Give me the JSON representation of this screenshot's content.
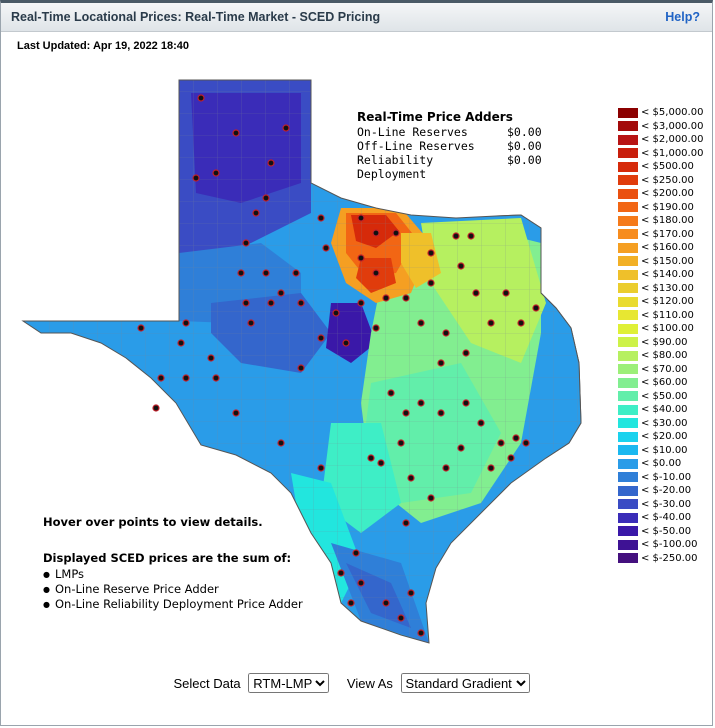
{
  "header": {
    "title": "Real-Time Locational Prices: Real-Time Market - SCED Pricing",
    "help_label": "Help?"
  },
  "last_updated": "Last Updated: Apr 19, 2022 18:40",
  "adders": {
    "heading": "Real-Time Price Adders",
    "rows": [
      {
        "label": "On-Line Reserves",
        "value": "$0.00"
      },
      {
        "label": "Off-Line Reserves",
        "value": "$0.00"
      },
      {
        "label": "Reliability Deployment",
        "value": "$0.00"
      }
    ]
  },
  "legend": [
    {
      "label": "< $5,000.00",
      "color": "#8b0000"
    },
    {
      "label": "< $3,000.00",
      "color": "#a30a0a"
    },
    {
      "label": "< $2,000.00",
      "color": "#b81414"
    },
    {
      "label": "< $1,000.00",
      "color": "#c81e0c"
    },
    {
      "label": "< $500.00",
      "color": "#d62a0a"
    },
    {
      "label": "< $250.00",
      "color": "#e03c0c"
    },
    {
      "label": "< $200.00",
      "color": "#ea5010"
    },
    {
      "label": "< $190.00",
      "color": "#f26614"
    },
    {
      "label": "< $180.00",
      "color": "#f57a1a"
    },
    {
      "label": "< $170.00",
      "color": "#f78c1e"
    },
    {
      "label": "< $160.00",
      "color": "#f59f22"
    },
    {
      "label": "< $150.00",
      "color": "#f2b026"
    },
    {
      "label": "< $140.00",
      "color": "#efc02a"
    },
    {
      "label": "< $130.00",
      "color": "#ebcd2e"
    },
    {
      "label": "< $120.00",
      "color": "#e9db30"
    },
    {
      "label": "< $110.00",
      "color": "#e7e732"
    },
    {
      "label": "< $100.00",
      "color": "#dff036"
    },
    {
      "label": "< $90.00",
      "color": "#cdf248"
    },
    {
      "label": "< $80.00",
      "color": "#b6f060"
    },
    {
      "label": "< $70.00",
      "color": "#9cef78"
    },
    {
      "label": "< $60.00",
      "color": "#82ee90"
    },
    {
      "label": "< $50.00",
      "color": "#62eeaa"
    },
    {
      "label": "< $40.00",
      "color": "#3eeec6"
    },
    {
      "label": "< $30.00",
      "color": "#22e6de"
    },
    {
      "label": "< $20.00",
      "color": "#1ad2ee"
    },
    {
      "label": "< $10.00",
      "color": "#1ab8f0"
    },
    {
      "label": "< $0.00",
      "color": "#2a9ce8"
    },
    {
      "label": "< $-10.00",
      "color": "#2f7fd8"
    },
    {
      "label": "< $-20.00",
      "color": "#3466cc"
    },
    {
      "label": "< $-30.00",
      "color": "#3a4cc4"
    },
    {
      "label": "< $-40.00",
      "color": "#3a2cb8"
    },
    {
      "label": "< $-50.00",
      "color": "#3a18a8"
    },
    {
      "label": "< $-100.00",
      "color": "#3e1294"
    },
    {
      "label": "< $-250.00",
      "color": "#44107e"
    }
  ],
  "notes": {
    "hover": "Hover over points to view details.",
    "displayed": "Displayed SCED prices are the sum of:",
    "items": [
      "LMPs",
      "On-Line Reserve Price Adder",
      "On-Line Reliability Deployment Price Adder"
    ]
  },
  "controls": {
    "select_data_label": "Select Data",
    "select_data_value": "RTM-LMP",
    "view_as_label": "View As",
    "view_as_value": "Standard Gradient"
  },
  "colors": {
    "accent": "#1f63c5",
    "title": "#2a3b4a"
  }
}
